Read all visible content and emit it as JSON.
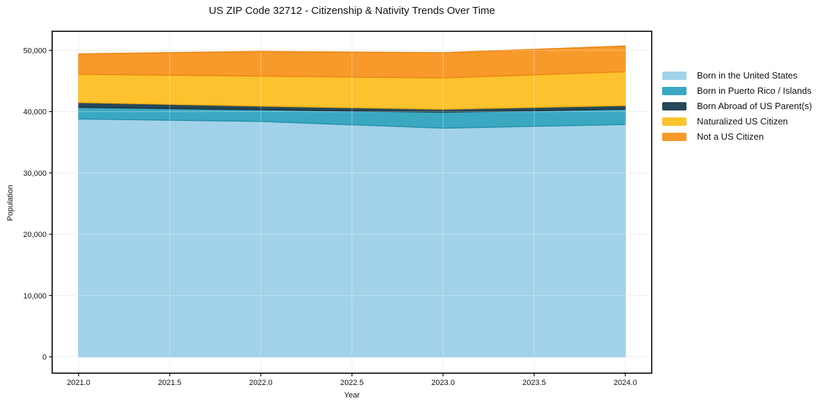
{
  "chart_data": {
    "type": "area",
    "stacked": true,
    "title": "US ZIP Code 32712 - Citizenship & Nativity Trends Over Time",
    "xlabel": "Year",
    "ylabel": "Population",
    "x": [
      2021,
      2022,
      2023,
      2024
    ],
    "series": [
      {
        "name": "Born in the United States",
        "color": "#a1d2e9",
        "edge": "#8cc3e0",
        "values": [
          38800,
          38400,
          37300,
          37900
        ]
      },
      {
        "name": "Born in Puerto Rico / Islands",
        "color": "#3aa8c1",
        "edge": "#2a92ab",
        "values": [
          1900,
          1900,
          2600,
          2500
        ]
      },
      {
        "name": "Born Abroad of US Parent(s)",
        "color": "#26485a",
        "edge": "#1a3443",
        "values": [
          800,
          600,
          500,
          600
        ]
      },
      {
        "name": "Naturalized US Citizen",
        "color": "#fdc32e",
        "edge": "#f3ae13",
        "values": [
          4600,
          4900,
          5100,
          5500
        ]
      },
      {
        "name": "Not a US Citizen",
        "color": "#f89a2b",
        "edge": "#ec8514",
        "values": [
          3300,
          4000,
          4100,
          4200
        ]
      }
    ],
    "totals": [
      49400,
      49800,
      49600,
      50700
    ],
    "xlim": [
      2020.855,
      2024.145
    ],
    "ylim": [
      -2660,
      53100
    ],
    "xticks": {
      "values": [
        2021.0,
        2021.5,
        2022.0,
        2022.5,
        2023.0,
        2023.5,
        2024.0
      ],
      "labels": [
        "2021.0",
        "2021.5",
        "2022.0",
        "2022.5",
        "2023.0",
        "2023.5",
        "2024.0"
      ]
    },
    "yticks": {
      "values": [
        0,
        10000,
        20000,
        30000,
        40000,
        50000
      ],
      "labels": [
        "0",
        "10,000",
        "20,000",
        "30,000",
        "40,000",
        "50,000"
      ]
    },
    "grid": true,
    "legend_position": "right-outside"
  }
}
